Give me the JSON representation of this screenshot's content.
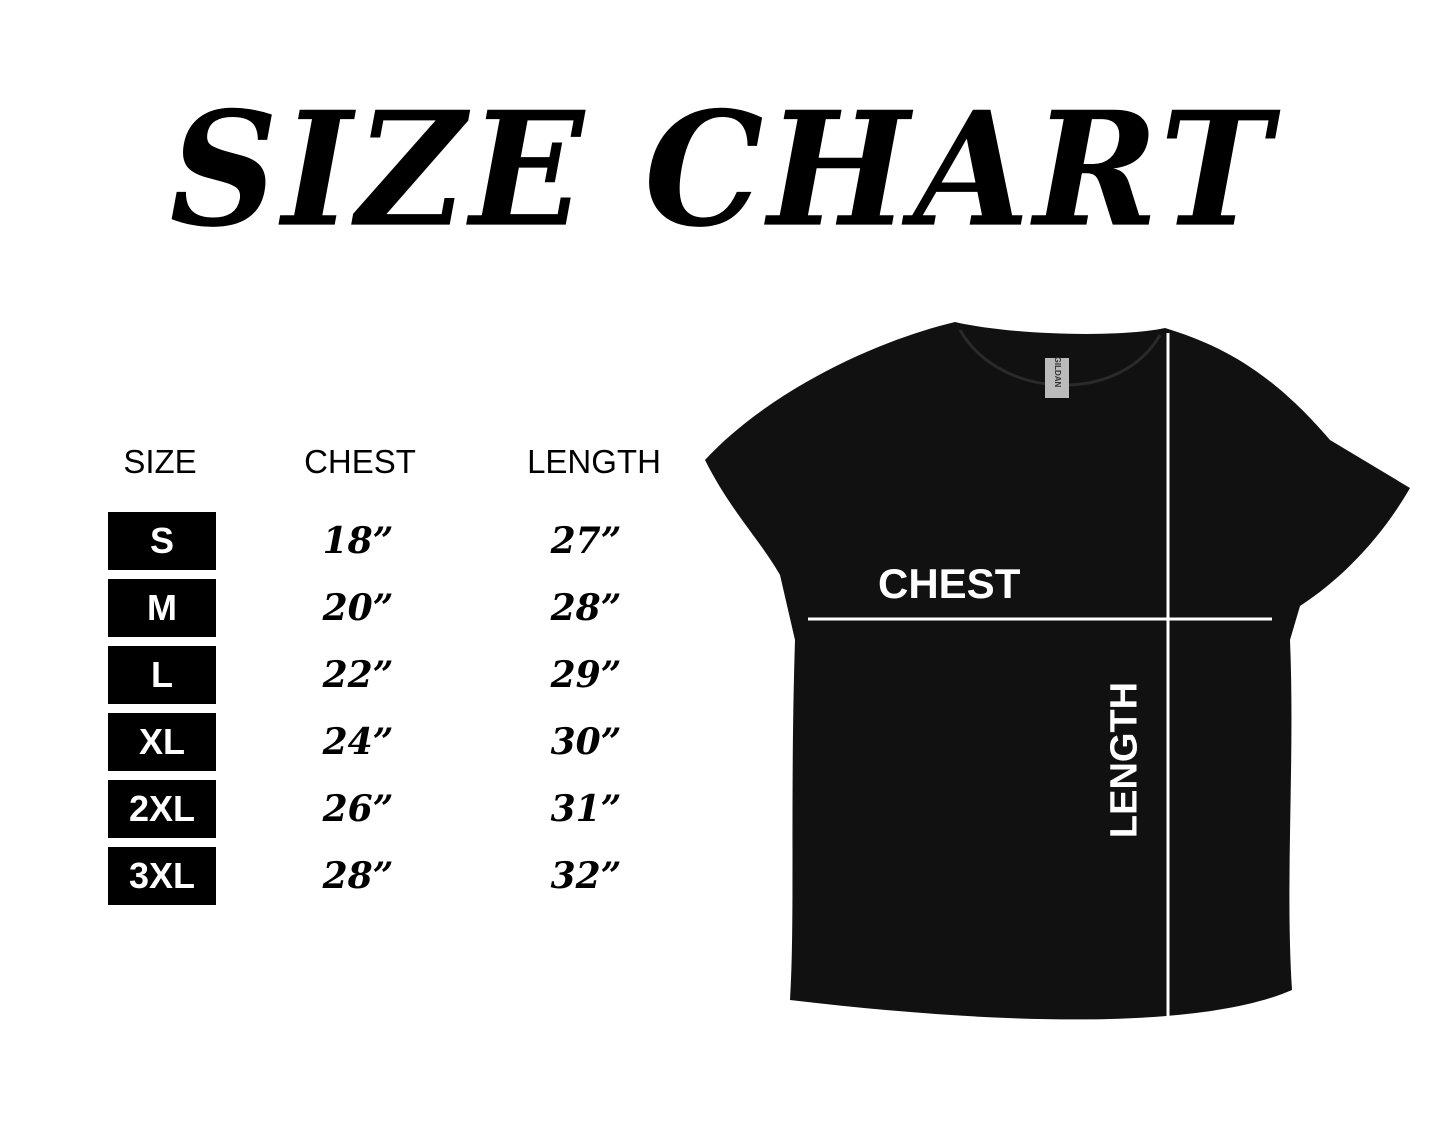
{
  "title": "SIZE CHART",
  "table": {
    "headers": [
      "SIZE",
      "CHEST",
      "LENGTH"
    ],
    "rows": [
      {
        "size": "S",
        "chest": "18”",
        "length": "27”"
      },
      {
        "size": "M",
        "chest": "20”",
        "length": "28”"
      },
      {
        "size": "L",
        "chest": "22”",
        "length": "29”"
      },
      {
        "size": "XL",
        "chest": "24”",
        "length": "30”"
      },
      {
        "size": "2XL",
        "chest": "26”",
        "length": "31”"
      },
      {
        "size": "3XL",
        "chest": "28”",
        "length": "32”"
      }
    ]
  },
  "diagram": {
    "chest_label": "CHEST",
    "length_label": "LENGTH",
    "shirt_color": "#111111",
    "tag_text": "GILDAN"
  }
}
